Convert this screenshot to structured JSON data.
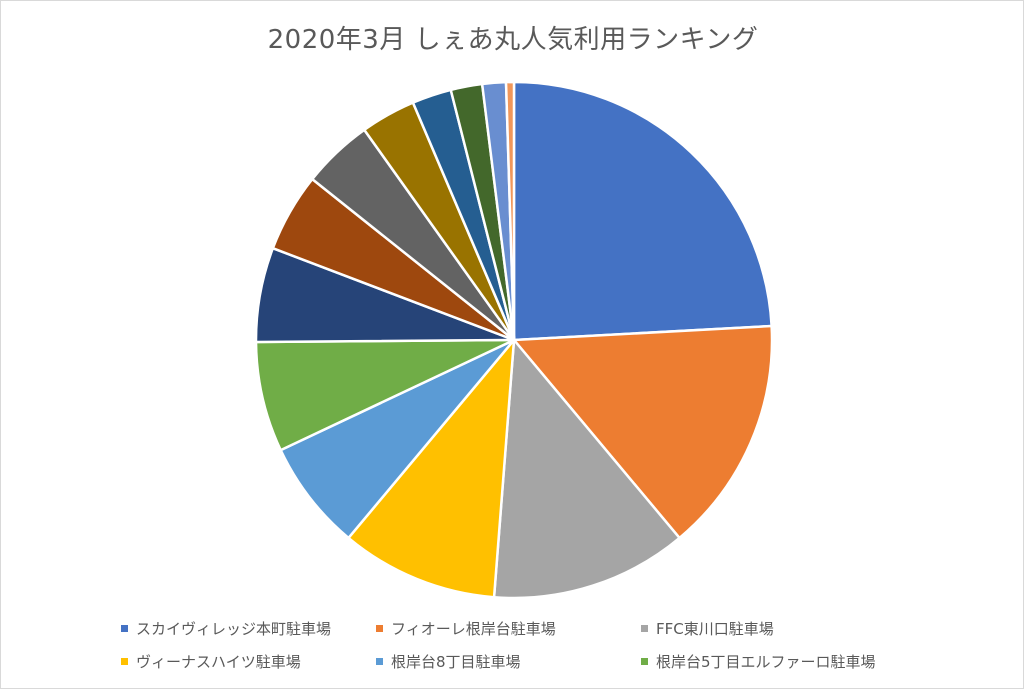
{
  "chart_data": {
    "type": "pie",
    "title": "2020年3月 しぇあ丸人気利用ランキング",
    "categories": [
      "スカイヴィレッジ本町駐車場",
      "フィオーレ根岸台駐車場",
      "FFC東川口駐車場",
      "ヴィーナスハイツ駐車場",
      "根岸台8丁目駐車場",
      "根岸台5丁目エルファーロ駐車場",
      "",
      "",
      "",
      "",
      "",
      "",
      "",
      ""
    ],
    "values": [
      24.5,
      15.0,
      12.5,
      10.0,
      7.0,
      7.0,
      6.0,
      5.0,
      4.5,
      3.5,
      2.5,
      2.0,
      1.5,
      0.5
    ],
    "colors": [
      "#4472C4",
      "#ED7D31",
      "#A5A5A5",
      "#FFC000",
      "#5B9BD5",
      "#70AD47",
      "#264478",
      "#9E480E",
      "#636363",
      "#997300",
      "#255E91",
      "#43682B",
      "#698ED0",
      "#F1975A"
    ],
    "legend_position": "bottom",
    "legend_visible_count": 6,
    "start_angle_deg": 0,
    "direction": "clockwise"
  }
}
